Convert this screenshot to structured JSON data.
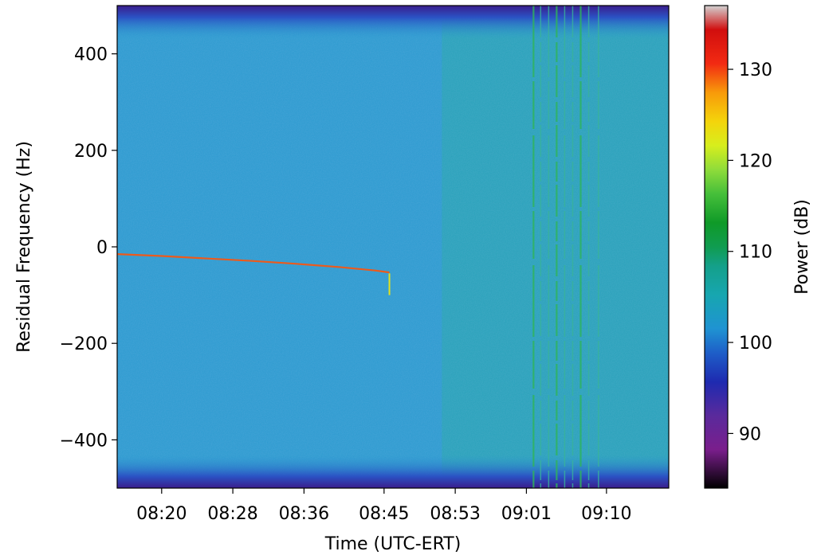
{
  "chart_data": {
    "type": "heatmap",
    "title": "",
    "xlabel": "Time (UTC-ERT)",
    "ylabel": "Residual Frequency (Hz)",
    "x_ticks": [
      "08:20",
      "08:28",
      "08:36",
      "08:45",
      "08:53",
      "09:01",
      "09:10"
    ],
    "x_tick_minutes": [
      500,
      508,
      516,
      525,
      533,
      541,
      550
    ],
    "xlim_minutes": [
      495,
      557
    ],
    "y_ticks": [
      400,
      200,
      0,
      -200,
      -400
    ],
    "ylim": [
      -500,
      500
    ],
    "colorbar": {
      "label": "Power (dB)",
      "ticks": [
        90,
        100,
        110,
        120,
        130
      ],
      "range": [
        84,
        137
      ],
      "colormap": "nipy_spectral"
    },
    "background_power_db": 100,
    "band_edge_power_db": 91,
    "late_segment_start_minute": 531.5,
    "late_segment_power_db": 103,
    "carrier_track": {
      "name": "",
      "x_minutes": [
        495,
        500,
        505,
        510,
        515,
        520,
        524,
        525.6
      ],
      "y_hz": [
        -15,
        -19,
        -24,
        -29,
        -35,
        -42,
        -49,
        -53
      ],
      "power_db": 127
    },
    "dropout_spike": {
      "x_minute": 525.6,
      "y_hz": [
        -55,
        -100
      ],
      "power_db": 120
    },
    "vertical_streaks_minutes": [
      541.8,
      542.6,
      543.5,
      544.4,
      545.3,
      546.2,
      547.1,
      548.0,
      549.1
    ]
  }
}
